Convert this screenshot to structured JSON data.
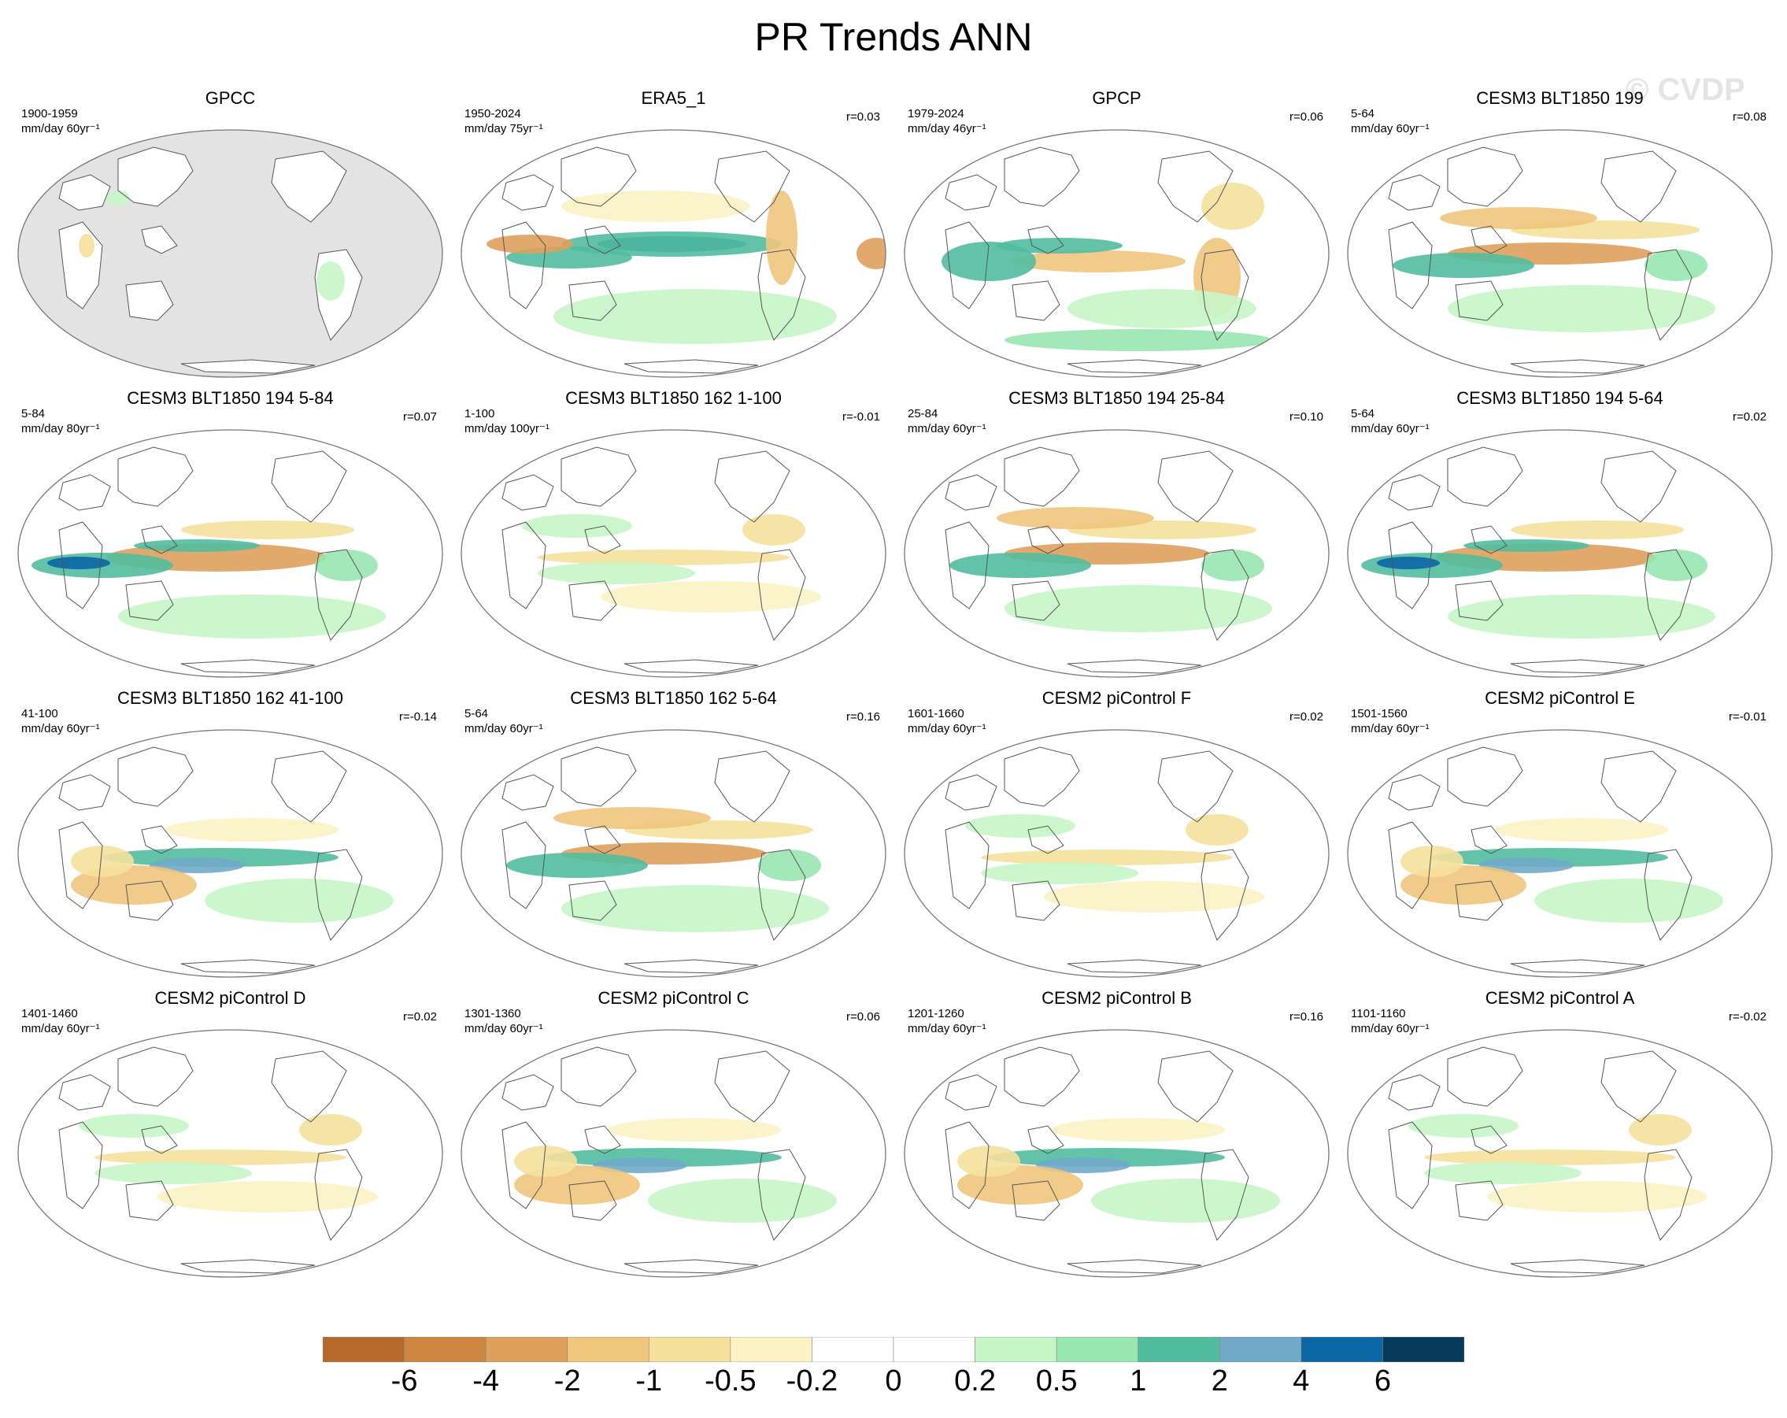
{
  "title": "PR Trends ANN",
  "watermark": "© CVDP",
  "panels": [
    {
      "title": "GPCC",
      "period": "1900-1959",
      "units": "mm/day 60yr⁻¹",
      "corr": "",
      "land_only": true,
      "pattern": "gpcc"
    },
    {
      "title": "ERA5_1",
      "period": "1950-2024",
      "units": "mm/day 75yr⁻¹",
      "corr": "r=0.03",
      "land_only": false,
      "pattern": "era5"
    },
    {
      "title": "GPCP",
      "period": "1979-2024",
      "units": "mm/day 46yr⁻¹",
      "corr": "r=0.06",
      "land_only": false,
      "pattern": "gpcp"
    },
    {
      "title": "CESM3 BLT1850 199",
      "period": "5-64",
      "units": "mm/day 60yr⁻¹",
      "corr": "r=0.08",
      "land_only": false,
      "pattern": "lanina"
    },
    {
      "title": "CESM3 BLT1850 194 5-84",
      "period": "5-84",
      "units": "mm/day 80yr⁻¹",
      "corr": "r=0.07",
      "land_only": false,
      "pattern": "lanina_strong"
    },
    {
      "title": "CESM3 BLT1850 162 1-100",
      "period": "1-100",
      "units": "mm/day 100yr⁻¹",
      "corr": "r=-0.01",
      "land_only": false,
      "pattern": "weak"
    },
    {
      "title": "CESM3 BLT1850 194 25-84",
      "period": "25-84",
      "units": "mm/day 60yr⁻¹",
      "corr": "r=0.10",
      "land_only": false,
      "pattern": "lanina"
    },
    {
      "title": "CESM3 BLT1850 194 5-64",
      "period": "5-64",
      "units": "mm/day 60yr⁻¹",
      "corr": "r=0.02",
      "land_only": false,
      "pattern": "lanina_strong"
    },
    {
      "title": "CESM3 BLT1850 162 41-100",
      "period": "41-100",
      "units": "mm/day 60yr⁻¹",
      "corr": "r=-0.14",
      "land_only": false,
      "pattern": "elnino"
    },
    {
      "title": "CESM3 BLT1850 162 5-64",
      "period": "5-64",
      "units": "mm/day 60yr⁻¹",
      "corr": "r=0.16",
      "land_only": false,
      "pattern": "lanina"
    },
    {
      "title": "CESM2 piControl F",
      "period": "1601-1660",
      "units": "mm/day 60yr⁻¹",
      "corr": "r=0.02",
      "land_only": false,
      "pattern": "weak"
    },
    {
      "title": "CESM2 piControl E",
      "period": "1501-1560",
      "units": "mm/day 60yr⁻¹",
      "corr": "r=-0.01",
      "land_only": false,
      "pattern": "elnino"
    },
    {
      "title": "CESM2 piControl D",
      "period": "1401-1460",
      "units": "mm/day 60yr⁻¹",
      "corr": "r=0.02",
      "land_only": false,
      "pattern": "weak"
    },
    {
      "title": "CESM2 piControl C",
      "period": "1301-1360",
      "units": "mm/day 60yr⁻¹",
      "corr": "r=0.06",
      "land_only": false,
      "pattern": "elnino"
    },
    {
      "title": "CESM2 piControl B",
      "period": "1201-1260",
      "units": "mm/day 60yr⁻¹",
      "corr": "r=0.16",
      "land_only": false,
      "pattern": "elnino"
    },
    {
      "title": "CESM2 piControl A",
      "period": "1101-1160",
      "units": "mm/day 60yr⁻¹",
      "corr": "r=-0.02",
      "land_only": false,
      "pattern": "weak"
    }
  ],
  "colorbar": {
    "labels": [
      "-6",
      "-4",
      "-2",
      "-1",
      "-0.5",
      "-0.2",
      "0",
      "0.2",
      "0.5",
      "1",
      "2",
      "4",
      "6"
    ],
    "colors": [
      "#b5692a",
      "#cd8540",
      "#dea15c",
      "#f0c57c",
      "#f5e19c",
      "#fbf3c4",
      "#ffffff",
      "#ffffff",
      "#c6f6c6",
      "#98e6b0",
      "#52bc9e",
      "#70aac8",
      "#0b66a6",
      "#07395a"
    ]
  }
}
